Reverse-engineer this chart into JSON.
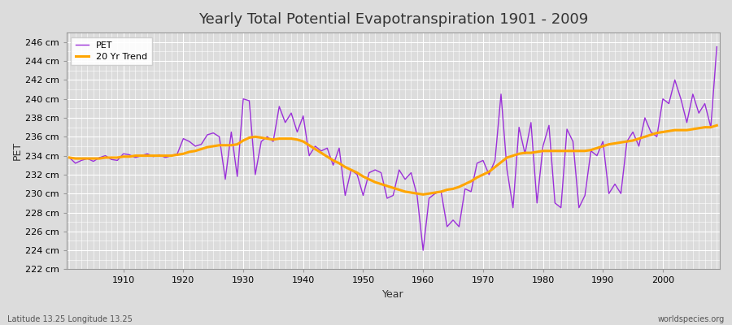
{
  "title": "Yearly Total Potential Evapotranspiration 1901 - 2009",
  "xlabel": "Year",
  "ylabel": "PET",
  "subtitle_left": "Latitude 13.25 Longitude 13.25",
  "subtitle_right": "worldspecies.org",
  "ylim": [
    222,
    247
  ],
  "ytick_step": 2,
  "ytick_suffix": " cm",
  "years": [
    1901,
    1902,
    1903,
    1904,
    1905,
    1906,
    1907,
    1908,
    1909,
    1910,
    1911,
    1912,
    1913,
    1914,
    1915,
    1916,
    1917,
    1918,
    1919,
    1920,
    1921,
    1922,
    1923,
    1924,
    1925,
    1926,
    1927,
    1928,
    1929,
    1930,
    1931,
    1932,
    1933,
    1934,
    1935,
    1936,
    1937,
    1938,
    1939,
    1940,
    1941,
    1942,
    1943,
    1944,
    1945,
    1946,
    1947,
    1948,
    1949,
    1950,
    1951,
    1952,
    1953,
    1954,
    1955,
    1956,
    1957,
    1958,
    1959,
    1960,
    1961,
    1962,
    1963,
    1964,
    1965,
    1966,
    1967,
    1968,
    1969,
    1970,
    1971,
    1972,
    1973,
    1974,
    1975,
    1976,
    1977,
    1978,
    1979,
    1980,
    1981,
    1982,
    1983,
    1984,
    1985,
    1986,
    1987,
    1988,
    1989,
    1990,
    1991,
    1992,
    1993,
    1994,
    1995,
    1996,
    1997,
    1998,
    1999,
    2000,
    2001,
    2002,
    2003,
    2004,
    2005,
    2006,
    2007,
    2008,
    2009
  ],
  "pet": [
    233.8,
    233.2,
    233.5,
    233.7,
    233.4,
    233.8,
    234.0,
    233.6,
    233.5,
    234.2,
    234.1,
    233.8,
    234.0,
    234.2,
    233.9,
    234.1,
    233.8,
    234.0,
    234.2,
    235.8,
    235.5,
    235.0,
    235.2,
    236.2,
    236.4,
    236.0,
    231.5,
    236.5,
    231.8,
    240.0,
    239.8,
    232.0,
    235.5,
    236.0,
    235.5,
    239.2,
    237.5,
    238.5,
    236.5,
    238.2,
    234.0,
    235.0,
    234.5,
    234.8,
    233.0,
    234.8,
    229.8,
    232.5,
    232.0,
    229.8,
    232.2,
    232.5,
    232.2,
    229.5,
    229.8,
    232.5,
    231.5,
    232.2,
    229.8,
    224.0,
    229.5,
    230.0,
    230.2,
    226.5,
    227.2,
    226.5,
    230.5,
    230.2,
    233.2,
    233.5,
    232.0,
    233.5,
    240.5,
    232.5,
    228.5,
    237.0,
    234.2,
    237.5,
    229.0,
    235.0,
    237.2,
    229.0,
    228.5,
    236.8,
    235.5,
    228.5,
    229.8,
    234.5,
    234.0,
    235.5,
    230.0,
    231.0,
    230.0,
    235.5,
    236.5,
    235.0,
    238.0,
    236.5,
    236.0,
    240.0,
    239.5,
    242.0,
    240.0,
    237.5,
    240.5,
    238.5,
    239.5,
    237.0,
    245.5
  ],
  "trend": [
    233.8,
    233.7,
    233.7,
    233.7,
    233.7,
    233.7,
    233.8,
    233.8,
    233.8,
    233.9,
    233.9,
    234.0,
    234.0,
    234.0,
    234.0,
    234.0,
    234.0,
    234.0,
    234.1,
    234.2,
    234.4,
    234.5,
    234.7,
    234.9,
    235.0,
    235.1,
    235.1,
    235.1,
    235.2,
    235.6,
    235.9,
    236.0,
    235.9,
    235.8,
    235.7,
    235.8,
    235.8,
    235.8,
    235.7,
    235.5,
    235.1,
    234.7,
    234.3,
    233.9,
    233.5,
    233.2,
    232.8,
    232.5,
    232.2,
    231.8,
    231.5,
    231.2,
    231.0,
    230.8,
    230.6,
    230.4,
    230.2,
    230.1,
    230.0,
    229.9,
    230.0,
    230.1,
    230.2,
    230.4,
    230.5,
    230.7,
    231.0,
    231.3,
    231.7,
    232.0,
    232.3,
    232.8,
    233.3,
    233.8,
    234.0,
    234.2,
    234.3,
    234.3,
    234.4,
    234.5,
    234.5,
    234.5,
    234.5,
    234.5,
    234.5,
    234.5,
    234.5,
    234.6,
    234.8,
    235.0,
    235.2,
    235.3,
    235.4,
    235.5,
    235.6,
    235.8,
    236.0,
    236.2,
    236.4,
    236.5,
    236.6,
    236.7,
    236.7,
    236.7,
    236.8,
    236.9,
    237.0,
    237.0,
    237.2
  ],
  "pet_color": "#9B30D9",
  "trend_color": "#FFA500",
  "bg_color": "#DCDCDC",
  "plot_bg_color": "#DCDCDC",
  "grid_color": "#FFFFFF",
  "title_fontsize": 13,
  "label_fontsize": 9,
  "tick_fontsize": 8,
  "legend_fontsize": 8
}
